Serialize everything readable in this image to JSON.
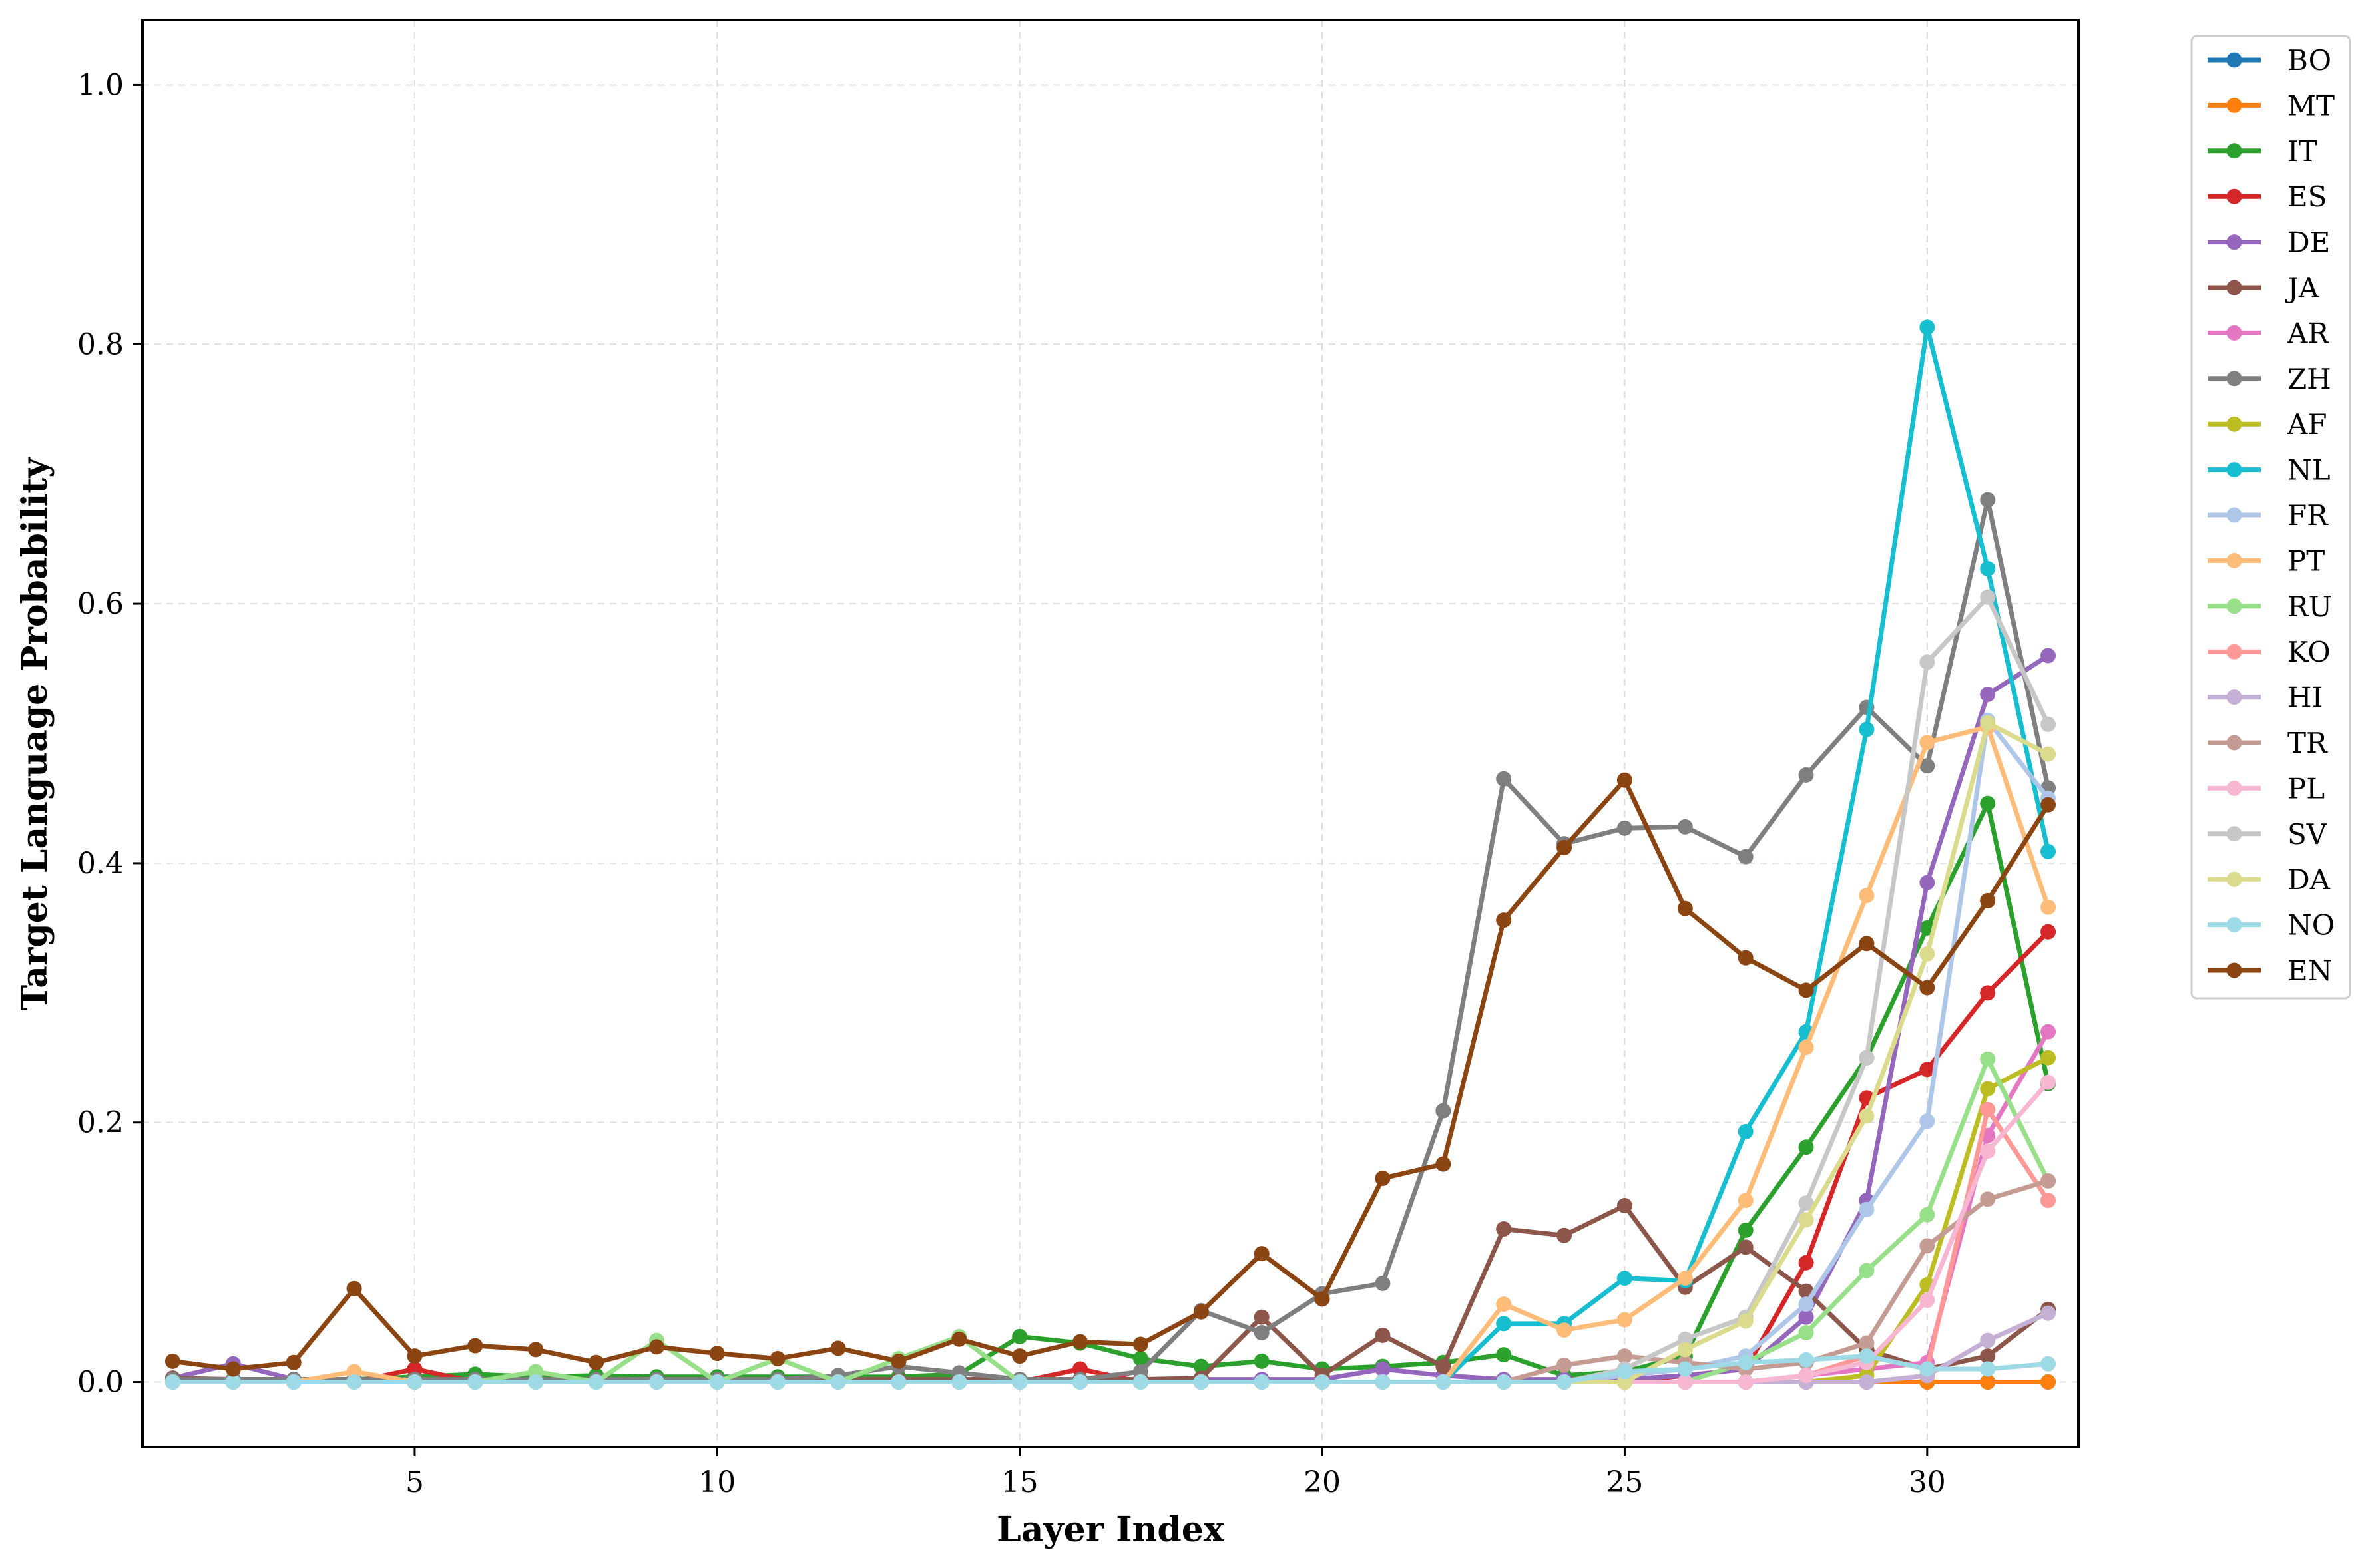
{
  "chart_data": {
    "type": "line",
    "title": "",
    "xlabel": "Layer Index",
    "ylabel": "Target Language Probability",
    "xlim": [
      0.5,
      32.5
    ],
    "ylim": [
      -0.05,
      1.05
    ],
    "xticks": [
      5,
      10,
      15,
      20,
      25,
      30
    ],
    "xtick_labels": [
      "5",
      "10",
      "15",
      "20",
      "25",
      "30"
    ],
    "yticks": [
      0.0,
      0.2,
      0.4,
      0.6,
      0.8,
      1.0
    ],
    "ytick_labels": [
      "0.0",
      "0.2",
      "0.4",
      "0.6",
      "0.8",
      "1.0"
    ],
    "grid": true,
    "legend_position": "outside-right",
    "x": [
      1,
      2,
      3,
      4,
      5,
      6,
      7,
      8,
      9,
      10,
      11,
      12,
      13,
      14,
      15,
      16,
      17,
      18,
      19,
      20,
      21,
      22,
      23,
      24,
      25,
      26,
      27,
      28,
      29,
      30,
      31,
      32
    ],
    "series": [
      {
        "name": "BO",
        "color": "#1f77b4",
        "values": [
          0,
          0,
          0,
          0,
          0,
          0,
          0,
          0,
          0,
          0,
          0,
          0,
          0,
          0,
          0,
          0,
          0,
          0,
          0,
          0,
          0,
          0,
          0,
          0,
          0,
          0,
          0,
          0,
          0,
          0,
          0,
          0
        ]
      },
      {
        "name": "MT",
        "color": "#ff7f0e",
        "values": [
          0,
          0,
          0,
          0,
          0,
          0,
          0,
          0,
          0,
          0,
          0,
          0,
          0,
          0,
          0,
          0,
          0,
          0,
          0,
          0,
          0,
          0,
          0,
          0,
          0,
          0,
          0,
          0,
          0,
          0,
          0,
          0
        ]
      },
      {
        "name": "IT",
        "color": "#2ca02c",
        "values": [
          0.002,
          0.002,
          0.002,
          0.002,
          0.004,
          0.006,
          0.004,
          0.005,
          0.004,
          0.004,
          0.004,
          0.004,
          0.004,
          0.006,
          0.035,
          0.03,
          0.018,
          0.012,
          0.016,
          0.01,
          0.012,
          0.015,
          0.021,
          0.005,
          0.008,
          0.02,
          0.117,
          0.181,
          0.25,
          0.35,
          0.446,
          0.23
        ]
      },
      {
        "name": "ES",
        "color": "#d62728",
        "values": [
          0,
          0,
          0,
          0,
          0.01,
          0,
          0,
          0,
          0,
          0,
          0,
          0,
          0,
          0,
          0,
          0.01,
          0,
          0,
          0,
          0,
          0,
          0,
          0,
          0,
          0,
          0.005,
          0.01,
          0.092,
          0.219,
          0.241,
          0.3,
          0.347
        ]
      },
      {
        "name": "DE",
        "color": "#9467bd",
        "values": [
          0.003,
          0.014,
          0.002,
          0.002,
          0.002,
          0.002,
          0.002,
          0.002,
          0.002,
          0.002,
          0.002,
          0.002,
          0.002,
          0.002,
          0.002,
          0.002,
          0.002,
          0.002,
          0.002,
          0.002,
          0.01,
          0.005,
          0.002,
          0.002,
          0.002,
          0.005,
          0.01,
          0.05,
          0.14,
          0.385,
          0.53,
          0.56
        ]
      },
      {
        "name": "JA",
        "color": "#8c564b",
        "values": [
          0.003,
          0.002,
          0.002,
          0.002,
          0.002,
          0.002,
          0.002,
          0.002,
          0.002,
          0.002,
          0.002,
          0.002,
          0.002,
          0.002,
          0.002,
          0.002,
          0.002,
          0.003,
          0.05,
          0.005,
          0.036,
          0.012,
          0.118,
          0.113,
          0.136,
          0.073,
          0.104,
          0.07,
          0.025,
          0.01,
          0.02,
          0.056
        ]
      },
      {
        "name": "AR",
        "color": "#e377c2",
        "values": [
          0,
          0,
          0,
          0,
          0,
          0,
          0,
          0,
          0,
          0,
          0,
          0,
          0,
          0,
          0,
          0,
          0,
          0,
          0,
          0,
          0,
          0,
          0,
          0,
          0,
          0,
          0,
          0.005,
          0.01,
          0.015,
          0.19,
          0.27
        ]
      },
      {
        "name": "ZH",
        "color": "#7f7f7f",
        "values": [
          0.002,
          0.002,
          0.002,
          0.002,
          0.002,
          0.002,
          0.002,
          0.002,
          0.002,
          0.002,
          0.002,
          0.005,
          0.012,
          0.007,
          0.002,
          0.002,
          0.008,
          0.055,
          0.038,
          0.068,
          0.076,
          0.209,
          0.465,
          0.415,
          0.427,
          0.428,
          0.405,
          0.468,
          0.52,
          0.475,
          0.68,
          0.458
        ]
      },
      {
        "name": "AF",
        "color": "#bcbd22",
        "values": [
          0,
          0,
          0,
          0,
          0,
          0,
          0,
          0,
          0,
          0,
          0,
          0,
          0,
          0,
          0,
          0,
          0,
          0,
          0,
          0,
          0,
          0,
          0,
          0,
          0,
          0,
          0,
          0,
          0.005,
          0.075,
          0.226,
          0.25
        ]
      },
      {
        "name": "NL",
        "color": "#17becf",
        "values": [
          0,
          0,
          0,
          0,
          0,
          0,
          0,
          0,
          0,
          0,
          0,
          0,
          0,
          0,
          0,
          0,
          0,
          0,
          0,
          0,
          0,
          0,
          0.045,
          0.045,
          0.08,
          0.078,
          0.193,
          0.27,
          0.503,
          0.813,
          0.627,
          0.409
        ]
      },
      {
        "name": "FR",
        "color": "#aec7e8",
        "values": [
          0,
          0,
          0,
          0,
          0,
          0,
          0,
          0,
          0,
          0,
          0,
          0,
          0,
          0,
          0,
          0,
          0,
          0,
          0,
          0,
          0,
          0,
          0,
          0,
          0.005,
          0.01,
          0.02,
          0.06,
          0.133,
          0.201,
          0.51,
          0.45
        ]
      },
      {
        "name": "PT",
        "color": "#ffbb78",
        "values": [
          0,
          0,
          0,
          0.008,
          0,
          0,
          0,
          0,
          0,
          0,
          0,
          0,
          0,
          0,
          0,
          0,
          0,
          0,
          0,
          0,
          0,
          0,
          0.06,
          0.04,
          0.048,
          0.08,
          0.14,
          0.258,
          0.375,
          0.493,
          0.505,
          0.366
        ]
      },
      {
        "name": "RU",
        "color": "#98df8a",
        "values": [
          0,
          0,
          0,
          0,
          0,
          0,
          0.008,
          0,
          0.032,
          0,
          0.018,
          0,
          0.018,
          0.035,
          0,
          0,
          0,
          0,
          0,
          0,
          0,
          0,
          0,
          0,
          0,
          0,
          0.015,
          0.038,
          0.086,
          0.129,
          0.249,
          0.155
        ]
      },
      {
        "name": "KO",
        "color": "#ff9896",
        "values": [
          0,
          0,
          0,
          0,
          0,
          0,
          0,
          0,
          0,
          0,
          0,
          0,
          0,
          0,
          0,
          0,
          0,
          0,
          0,
          0,
          0,
          0,
          0,
          0,
          0,
          0,
          0,
          0.005,
          0.02,
          0.01,
          0.21,
          0.14
        ]
      },
      {
        "name": "HI",
        "color": "#c5b0d5",
        "values": [
          0,
          0,
          0,
          0,
          0,
          0,
          0,
          0,
          0,
          0,
          0,
          0,
          0,
          0,
          0,
          0,
          0,
          0,
          0,
          0,
          0,
          0,
          0,
          0,
          0,
          0,
          0,
          0,
          0,
          0.005,
          0.032,
          0.053
        ]
      },
      {
        "name": "TR",
        "color": "#c49c94",
        "values": [
          0,
          0,
          0,
          0,
          0,
          0,
          0,
          0,
          0,
          0,
          0,
          0,
          0,
          0,
          0,
          0,
          0,
          0,
          0,
          0,
          0,
          0,
          0,
          0.013,
          0.02,
          0.015,
          0.01,
          0.015,
          0.03,
          0.105,
          0.141,
          0.155
        ]
      },
      {
        "name": "PL",
        "color": "#f7b6d2",
        "values": [
          0,
          0,
          0,
          0,
          0,
          0,
          0,
          0,
          0,
          0,
          0,
          0,
          0,
          0,
          0,
          0,
          0,
          0,
          0,
          0,
          0,
          0,
          0,
          0,
          0,
          0,
          0,
          0.005,
          0.015,
          0.063,
          0.178,
          0.231
        ]
      },
      {
        "name": "SV",
        "color": "#c7c7c7",
        "values": [
          0,
          0,
          0,
          0,
          0,
          0,
          0,
          0,
          0,
          0,
          0,
          0,
          0,
          0,
          0,
          0,
          0,
          0,
          0,
          0,
          0,
          0,
          0,
          0,
          0.01,
          0.033,
          0.05,
          0.138,
          0.25,
          0.555,
          0.605,
          0.507
        ]
      },
      {
        "name": "DA",
        "color": "#dbdb8d",
        "values": [
          0,
          0,
          0,
          0,
          0,
          0,
          0,
          0,
          0,
          0,
          0,
          0,
          0,
          0,
          0,
          0,
          0,
          0,
          0,
          0,
          0,
          0,
          0,
          0,
          0,
          0.025,
          0.047,
          0.125,
          0.205,
          0.33,
          0.508,
          0.484
        ]
      },
      {
        "name": "NO",
        "color": "#9edae5",
        "values": [
          0,
          0,
          0,
          0,
          0,
          0,
          0,
          0,
          0,
          0,
          0,
          0,
          0,
          0,
          0,
          0,
          0,
          0,
          0,
          0,
          0,
          0,
          0,
          0,
          0.008,
          0.01,
          0.015,
          0.017,
          0.02,
          0.01,
          0.01,
          0.014
        ]
      },
      {
        "name": "EN",
        "color": "#8b4513",
        "values": [
          0.016,
          0.01,
          0.015,
          0.072,
          0.02,
          0.028,
          0.025,
          0.015,
          0.027,
          0.022,
          0.018,
          0.026,
          0.016,
          0.033,
          0.02,
          0.031,
          0.029,
          0.054,
          0.099,
          0.064,
          0.157,
          0.168,
          0.356,
          0.412,
          0.464,
          0.365,
          0.327,
          0.302,
          0.338,
          0.304,
          0.371,
          0.445
        ]
      }
    ]
  }
}
